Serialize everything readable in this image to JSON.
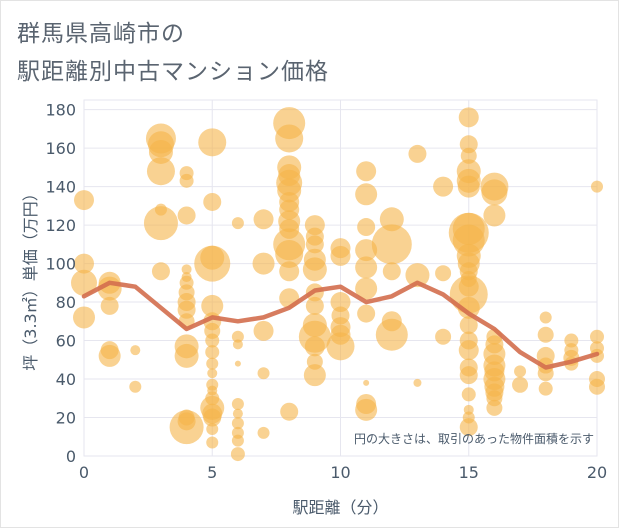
{
  "header": {
    "title_line1": "群馬県高崎市の",
    "title_line2": "駅距離別中古マンション価格"
  },
  "colors": {
    "bubble": "#f5b44a",
    "line": "#d36e4e",
    "grid": "#e6e6ef",
    "axis_text": "#4a5a6b"
  },
  "chart_data": {
    "type": "scatter",
    "title": "群馬県高崎市の駅距離別中古マンション価格",
    "xlabel": "駅距離（分）",
    "ylabel": "坪（3.3㎡）単価（万円）",
    "xlim": [
      0,
      20
    ],
    "ylim": [
      0,
      185
    ],
    "xticks": [
      "0",
      "5",
      "10",
      "15",
      "20"
    ],
    "yticks": [
      "0",
      "20",
      "40",
      "60",
      "80",
      "100",
      "120",
      "140",
      "160",
      "180"
    ],
    "note": "円の大きさは、取引のあった物件面積を示す",
    "grid": true,
    "legend": "none",
    "series": [
      {
        "kind": "bubble",
        "points": [
          [
            0,
            133,
            10
          ],
          [
            0,
            100,
            10
          ],
          [
            0,
            90,
            13
          ],
          [
            0,
            72,
            11
          ],
          [
            1,
            90,
            11
          ],
          [
            1,
            87,
            12
          ],
          [
            1,
            78,
            9
          ],
          [
            1,
            55,
            9
          ],
          [
            1,
            52,
            11
          ],
          [
            2,
            55,
            5
          ],
          [
            2,
            36,
            6
          ],
          [
            3,
            165,
            15
          ],
          [
            3,
            162,
            13
          ],
          [
            3,
            158,
            12
          ],
          [
            3,
            148,
            14
          ],
          [
            3,
            128,
            6
          ],
          [
            3,
            121,
            17
          ],
          [
            3,
            96,
            9
          ],
          [
            4,
            147,
            7
          ],
          [
            4,
            143,
            7
          ],
          [
            4,
            125,
            9
          ],
          [
            4,
            97,
            5
          ],
          [
            4,
            93,
            5
          ],
          [
            4,
            90,
            7
          ],
          [
            4,
            85,
            8
          ],
          [
            4,
            80,
            9
          ],
          [
            4,
            76,
            9
          ],
          [
            4,
            70,
            8
          ],
          [
            4,
            57,
            12
          ],
          [
            4,
            52,
            12
          ],
          [
            4,
            20,
            8
          ],
          [
            4,
            18,
            9
          ],
          [
            4,
            15,
            17
          ],
          [
            5,
            163,
            14
          ],
          [
            5,
            132,
            9
          ],
          [
            5,
            103,
            12
          ],
          [
            5,
            100,
            18
          ],
          [
            5,
            78,
            11
          ],
          [
            5,
            70,
            9
          ],
          [
            5,
            65,
            8
          ],
          [
            5,
            60,
            7
          ],
          [
            5,
            54,
            7
          ],
          [
            5,
            48,
            6
          ],
          [
            5,
            43,
            5
          ],
          [
            5,
            37,
            6
          ],
          [
            5,
            34,
            5
          ],
          [
            5,
            30,
            7
          ],
          [
            5,
            25,
            12
          ],
          [
            5,
            22,
            10
          ],
          [
            5,
            20,
            9
          ],
          [
            5,
            14,
            6
          ],
          [
            5,
            7,
            6
          ],
          [
            6,
            121,
            6
          ],
          [
            6,
            62,
            6
          ],
          [
            6,
            58,
            5
          ],
          [
            6,
            48,
            3
          ],
          [
            6,
            27,
            6
          ],
          [
            6,
            22,
            5
          ],
          [
            6,
            17,
            6
          ],
          [
            6,
            12,
            6
          ],
          [
            6,
            8,
            6
          ],
          [
            6,
            1,
            7
          ],
          [
            7,
            123,
            10
          ],
          [
            7,
            100,
            11
          ],
          [
            7,
            65,
            10
          ],
          [
            7,
            43,
            6
          ],
          [
            7,
            12,
            6
          ],
          [
            8,
            173,
            16
          ],
          [
            8,
            165,
            14
          ],
          [
            8,
            150,
            12
          ],
          [
            8,
            146,
            11
          ],
          [
            8,
            142,
            13
          ],
          [
            8,
            138,
            12
          ],
          [
            8,
            132,
            10
          ],
          [
            8,
            128,
            10
          ],
          [
            8,
            122,
            11
          ],
          [
            8,
            118,
            10
          ],
          [
            8,
            110,
            16
          ],
          [
            8,
            105,
            14
          ],
          [
            8,
            96,
            10
          ],
          [
            8,
            82,
            10
          ],
          [
            8,
            23,
            9
          ],
          [
            9,
            120,
            10
          ],
          [
            9,
            114,
            9
          ],
          [
            9,
            110,
            9
          ],
          [
            9,
            102,
            11
          ],
          [
            9,
            97,
            12
          ],
          [
            9,
            85,
            9
          ],
          [
            9,
            78,
            9
          ],
          [
            9,
            68,
            12
          ],
          [
            9,
            62,
            16
          ],
          [
            9,
            57,
            10
          ],
          [
            9,
            49,
            8
          ],
          [
            9,
            42,
            11
          ],
          [
            10,
            108,
            10
          ],
          [
            10,
            104,
            10
          ],
          [
            10,
            80,
            10
          ],
          [
            10,
            73,
            9
          ],
          [
            10,
            67,
            10
          ],
          [
            10,
            63,
            10
          ],
          [
            10,
            57,
            14
          ],
          [
            11,
            148,
            10
          ],
          [
            11,
            136,
            11
          ],
          [
            11,
            119,
            9
          ],
          [
            11,
            107,
            11
          ],
          [
            11,
            98,
            11
          ],
          [
            11,
            87,
            11
          ],
          [
            11,
            74,
            9
          ],
          [
            11,
            38,
            3
          ],
          [
            11,
            27,
            10
          ],
          [
            11,
            24,
            11
          ],
          [
            12,
            123,
            12
          ],
          [
            12,
            110,
            20
          ],
          [
            12,
            96,
            9
          ],
          [
            12,
            70,
            10
          ],
          [
            12,
            63,
            16
          ],
          [
            13,
            157,
            9
          ],
          [
            13,
            94,
            12
          ],
          [
            13,
            38,
            4
          ],
          [
            14,
            140,
            10
          ],
          [
            14,
            95,
            8
          ],
          [
            14,
            62,
            8
          ],
          [
            15,
            176,
            10
          ],
          [
            15,
            162,
            9
          ],
          [
            15,
            156,
            8
          ],
          [
            15,
            148,
            12
          ],
          [
            15,
            143,
            12
          ],
          [
            15,
            140,
            11
          ],
          [
            15,
            118,
            16
          ],
          [
            15,
            116,
            20
          ],
          [
            15,
            112,
            16
          ],
          [
            15,
            104,
            12
          ],
          [
            15,
            100,
            11
          ],
          [
            15,
            96,
            9
          ],
          [
            15,
            92,
            8
          ],
          [
            15,
            88,
            10
          ],
          [
            15,
            84,
            19
          ],
          [
            15,
            77,
            11
          ],
          [
            15,
            68,
            9
          ],
          [
            15,
            60,
            9
          ],
          [
            15,
            55,
            10
          ],
          [
            15,
            46,
            9
          ],
          [
            15,
            42,
            9
          ],
          [
            15,
            32,
            7
          ],
          [
            15,
            24,
            5
          ],
          [
            15,
            20,
            6
          ],
          [
            15,
            15,
            9
          ],
          [
            16,
            140,
            14
          ],
          [
            16,
            137,
            13
          ],
          [
            16,
            125,
            11
          ],
          [
            16,
            62,
            8
          ],
          [
            16,
            58,
            9
          ],
          [
            16,
            53,
            11
          ],
          [
            16,
            47,
            11
          ],
          [
            16,
            44,
            10
          ],
          [
            16,
            40,
            11
          ],
          [
            16,
            36,
            10
          ],
          [
            16,
            33,
            9
          ],
          [
            16,
            30,
            8
          ],
          [
            16,
            25,
            8
          ],
          [
            17,
            44,
            6
          ],
          [
            17,
            37,
            8
          ],
          [
            18,
            72,
            6
          ],
          [
            18,
            63,
            8
          ],
          [
            18,
            52,
            9
          ],
          [
            18,
            47,
            8
          ],
          [
            18,
            43,
            8
          ],
          [
            18,
            35,
            7
          ],
          [
            19,
            60,
            7
          ],
          [
            19,
            55,
            7
          ],
          [
            19,
            51,
            8
          ],
          [
            19,
            48,
            7
          ],
          [
            20,
            140,
            6
          ],
          [
            20,
            62,
            7
          ],
          [
            20,
            56,
            7
          ],
          [
            20,
            52,
            7
          ],
          [
            20,
            40,
            8
          ],
          [
            20,
            36,
            8
          ]
        ]
      },
      {
        "kind": "line",
        "x": [
          0,
          1,
          2,
          3,
          4,
          5,
          6,
          7,
          8,
          9,
          10,
          11,
          12,
          13,
          14,
          15,
          16,
          17,
          18,
          19,
          20
        ],
        "values": [
          83,
          90,
          88,
          77,
          66,
          72,
          70,
          72,
          77,
          86,
          88,
          80,
          83,
          90,
          84,
          74,
          66,
          54,
          46,
          49,
          53
        ]
      }
    ]
  }
}
